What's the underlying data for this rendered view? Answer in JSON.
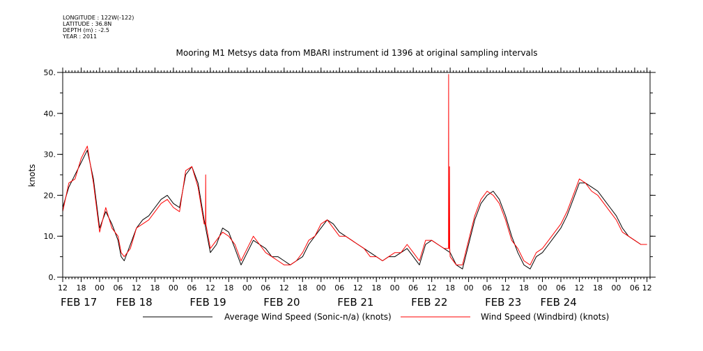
{
  "meta": {
    "longitude": "LONGITUDE : 122W(-122)",
    "latitude": "LATITUDE : 36.8N",
    "depth": "DEPTH (m) : -2.5",
    "year": "YEAR : 2011"
  },
  "chart_data": {
    "type": "line",
    "title": "Mooring M1 Metsys data from MBARI instrument id 1396 at original sampling intervals",
    "ylabel": "knots",
    "xlabel": "",
    "ylim": [
      0,
      50
    ],
    "yticks": [
      "0.",
      "10.",
      "20.",
      "30.",
      "40.",
      "50."
    ],
    "xlim_hours": [
      -12,
      179
    ],
    "hour_ticks": [
      {
        "h": -12,
        "label": "12"
      },
      {
        "h": -6,
        "label": "18"
      },
      {
        "h": 0,
        "label": "00"
      },
      {
        "h": 6,
        "label": "06"
      },
      {
        "h": 12,
        "label": "12"
      },
      {
        "h": 18,
        "label": "18"
      },
      {
        "h": 24,
        "label": "00"
      },
      {
        "h": 30,
        "label": "06"
      },
      {
        "h": 36,
        "label": "12"
      },
      {
        "h": 42,
        "label": "18"
      },
      {
        "h": 48,
        "label": "00"
      },
      {
        "h": 54,
        "label": "06"
      },
      {
        "h": 60,
        "label": "12"
      },
      {
        "h": 66,
        "label": "18"
      },
      {
        "h": 72,
        "label": "00"
      },
      {
        "h": 78,
        "label": "06"
      },
      {
        "h": 84,
        "label": "12"
      },
      {
        "h": 90,
        "label": "18"
      },
      {
        "h": 96,
        "label": "00"
      },
      {
        "h": 102,
        "label": "06"
      },
      {
        "h": 108,
        "label": "12"
      },
      {
        "h": 114,
        "label": "18"
      },
      {
        "h": 120,
        "label": "00"
      },
      {
        "h": 126,
        "label": "06"
      },
      {
        "h": 132,
        "label": "12"
      },
      {
        "h": 138,
        "label": "18"
      },
      {
        "h": 144,
        "label": "00"
      },
      {
        "h": 150,
        "label": "06"
      },
      {
        "h": 156,
        "label": "12"
      },
      {
        "h": 162,
        "label": "18"
      },
      {
        "h": 168,
        "label": "00"
      },
      {
        "h": 174,
        "label": "06"
      },
      {
        "h": 178,
        "label": "12"
      }
    ],
    "date_labels": [
      {
        "h": -12,
        "label": "FEB 17"
      },
      {
        "h": 6,
        "label": "FEB 18"
      },
      {
        "h": 30,
        "label": "FEB 19"
      },
      {
        "h": 54,
        "label": "FEB 20"
      },
      {
        "h": 78,
        "label": "FEB 21"
      },
      {
        "h": 102,
        "label": "FEB 22"
      },
      {
        "h": 126,
        "label": "FEB 23"
      },
      {
        "h": 144,
        "label": "FEB 24"
      }
    ],
    "series": [
      {
        "name": "Average Wind Speed (Sonic-n/a) (knots)",
        "color": "#000000",
        "x": [
          -12,
          -10,
          -8,
          -6,
          -4,
          -2,
          0,
          2,
          4,
          6,
          7,
          8,
          10,
          12,
          14,
          16,
          18,
          20,
          22,
          24,
          26,
          28,
          30,
          32,
          34,
          36,
          38,
          40,
          42,
          44,
          46,
          48,
          50,
          52,
          54,
          56,
          58,
          60,
          62,
          64,
          66,
          68,
          70,
          72,
          74,
          76,
          78,
          80,
          82,
          84,
          86,
          88,
          90,
          92,
          94,
          96,
          98,
          100,
          102,
          104,
          106,
          108,
          110,
          112,
          114,
          116,
          118,
          120,
          122,
          124,
          126,
          128,
          130,
          132,
          134,
          136,
          138,
          140,
          142,
          144,
          146,
          148,
          150,
          152,
          154,
          156,
          158,
          160,
          162,
          164,
          166,
          168,
          170,
          172,
          174,
          176,
          178
        ],
        "values": [
          17,
          22,
          25,
          28,
          31,
          24,
          12,
          16,
          13,
          9,
          5,
          4,
          8,
          12,
          14,
          15,
          17,
          19,
          20,
          18,
          17,
          25,
          27,
          23,
          14,
          6,
          8,
          12,
          11,
          7,
          3,
          6,
          9,
          8,
          7,
          5,
          5,
          4,
          3,
          4,
          5,
          8,
          10,
          12,
          14,
          13,
          11,
          10,
          9,
          8,
          7,
          6,
          5,
          4,
          5,
          5,
          6,
          7,
          5,
          3,
          8,
          9,
          8,
          7,
          6,
          3,
          2,
          8,
          14,
          18,
          20,
          21,
          19,
          15,
          10,
          6,
          3,
          2,
          5,
          6,
          8,
          10,
          12,
          15,
          19,
          23,
          23,
          22,
          21,
          19,
          17,
          15,
          12,
          10,
          9,
          8,
          8
        ]
      },
      {
        "name": "Wind Speed (Windbird) (knots)",
        "color": "#ff0000",
        "x": [
          -12,
          -10,
          -8,
          -6,
          -4,
          -2,
          0,
          2,
          4,
          6,
          7,
          8,
          10,
          12,
          14,
          16,
          18,
          20,
          22,
          24,
          26,
          28,
          30,
          32,
          34,
          36,
          38,
          40,
          42,
          44,
          46,
          48,
          50,
          52,
          54,
          56,
          58,
          60,
          62,
          64,
          66,
          68,
          70,
          72,
          74,
          76,
          78,
          80,
          82,
          84,
          86,
          88,
          90,
          92,
          94,
          96,
          98,
          100,
          102,
          104,
          106,
          108,
          110,
          112,
          114,
          116,
          118,
          120,
          122,
          124,
          126,
          128,
          130,
          132,
          134,
          136,
          138,
          140,
          142,
          144,
          146,
          148,
          150,
          152,
          154,
          156,
          158,
          160,
          162,
          164,
          166,
          168,
          170,
          172,
          174,
          176,
          178
        ],
        "values": [
          16,
          23,
          24,
          29,
          32,
          23,
          11,
          17,
          12,
          10,
          6,
          5,
          7,
          12,
          13,
          14,
          16,
          18,
          19,
          17,
          16,
          26,
          27,
          22,
          13,
          7,
          9,
          11,
          10,
          8,
          4,
          7,
          10,
          8,
          6,
          5,
          4,
          3,
          3,
          4,
          6,
          9,
          10,
          13,
          14,
          12,
          10,
          10,
          9,
          8,
          7,
          5,
          5,
          4,
          5,
          6,
          6,
          8,
          6,
          4,
          9,
          9,
          8,
          7,
          5,
          3,
          3,
          9,
          15,
          19,
          21,
          20,
          18,
          14,
          9,
          7,
          4,
          3,
          6,
          7,
          9,
          11,
          13,
          16,
          20,
          24,
          23,
          21,
          20,
          18,
          16,
          14,
          11,
          10,
          9,
          8,
          8
        ],
        "spikes": [
          {
            "x": 113.5,
            "value": 49.5
          },
          {
            "x": 113.8,
            "value": 27
          },
          {
            "x": 34.5,
            "value": 25
          }
        ]
      }
    ]
  }
}
